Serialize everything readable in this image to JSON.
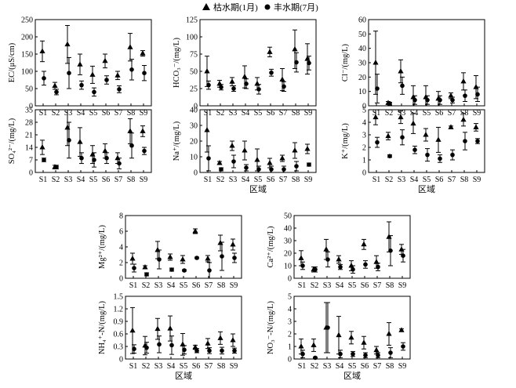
{
  "legend": {
    "placement": "top-center",
    "items": [
      {
        "label": "枯水期(1月)",
        "marker": "triangle"
      },
      {
        "label": "丰水期(7月)",
        "marker": "circle"
      }
    ]
  },
  "chart_data": [
    {
      "type": "scatter",
      "ylabel": "EC/(μS/cm)",
      "xlabel": "",
      "categories": [
        "S1",
        "S2",
        "S3",
        "S4",
        "S5",
        "S6",
        "S7",
        "S8",
        "S9"
      ],
      "ylim": [
        0,
        250
      ],
      "yticks": [
        0,
        50,
        100,
        150,
        200,
        250
      ],
      "series": [
        {
          "name": "枯水期(1月)",
          "marker": "triangle",
          "values": [
            158,
            58,
            178,
            120,
            90,
            130,
            88,
            170,
            152
          ],
          "errors": [
            30,
            10,
            55,
            30,
            25,
            20,
            12,
            40,
            8
          ]
        },
        {
          "name": "丰水期(7月)",
          "marker": "circle",
          "values": [
            80,
            40,
            95,
            60,
            40,
            75,
            48,
            105,
            95
          ],
          "errors": [
            20,
            8,
            45,
            12,
            12,
            12,
            10,
            30,
            22
          ]
        }
      ]
    },
    {
      "type": "scatter",
      "ylabel": "HCO₃⁻/(mg/L)",
      "xlabel": "",
      "categories": [
        "S1",
        "S2",
        "S3",
        "S4",
        "S5",
        "S6",
        "S7",
        "S8",
        "S9"
      ],
      "ylim": [
        0,
        125
      ],
      "yticks": [
        0,
        25,
        50,
        75,
        100,
        125
      ],
      "series": [
        {
          "name": "枯水期(1月)",
          "marker": "triangle",
          "values": [
            50,
            32,
            35,
            42,
            32,
            78,
            38,
            82,
            68
          ],
          "errors": [
            22,
            5,
            6,
            16,
            9,
            7,
            16,
            28,
            22
          ]
        },
        {
          "name": "丰水期(7月)",
          "marker": "circle",
          "values": [
            30,
            27,
            25,
            32,
            24,
            48,
            28,
            63,
            62
          ],
          "errors": [
            6,
            4,
            4,
            7,
            7,
            5,
            7,
            14,
            10
          ]
        }
      ]
    },
    {
      "type": "scatter",
      "ylabel": "Cl⁻/(mg/L)",
      "xlabel": "",
      "categories": [
        "S1",
        "S2",
        "S3",
        "S4",
        "S5",
        "S6",
        "S7",
        "S8",
        "S9"
      ],
      "ylim": [
        0,
        60
      ],
      "yticks": [
        0,
        10,
        20,
        30,
        40,
        50,
        60
      ],
      "series": [
        {
          "name": "枯水期(1月)",
          "marker": "triangle",
          "values": [
            30,
            2,
            24,
            6,
            6,
            5,
            7,
            17,
            13
          ],
          "errors": [
            22,
            1,
            8,
            8,
            8,
            5,
            2,
            6,
            8
          ]
        },
        {
          "name": "丰水期(7月)",
          "marker": "circle",
          "values": [
            12,
            1.5,
            14,
            4,
            4,
            4,
            4,
            7,
            8
          ],
          "errors": [
            10,
            1,
            6,
            3,
            3,
            3,
            2,
            4,
            5
          ]
        }
      ]
    },
    {
      "type": "scatter",
      "ylabel": "SO₄²⁻/(mg/L)",
      "xlabel": "",
      "categories": [
        "S1",
        "S2",
        "S3",
        "S4",
        "S5",
        "S6",
        "S7",
        "S8",
        "S9"
      ],
      "ylim": [
        0,
        35
      ],
      "yticks": [
        0,
        7,
        14,
        21,
        28,
        35
      ],
      "series": [
        {
          "name": "枯水期(1月)",
          "marker": "triangle",
          "values": [
            14,
            3,
            25,
            17,
            10,
            12,
            8,
            23,
            23
          ],
          "errors": [
            4,
            1,
            10,
            8,
            5,
            4,
            3,
            7,
            3
          ]
        },
        {
          "name": "丰水期(7月)",
          "marker": "circle",
          "values": [
            7,
            3,
            18,
            8,
            7,
            8,
            5,
            15,
            12
          ],
          "errors": [
            1,
            1,
            10,
            3,
            4,
            3,
            3,
            7,
            2
          ]
        }
      ]
    },
    {
      "type": "scatter",
      "ylabel": "Na⁺/(mg/L)",
      "xlabel": "区域",
      "categories": [
        "S1",
        "S2",
        "S3",
        "S4",
        "S5",
        "S6",
        "S7",
        "S8",
        "S9"
      ],
      "ylim": [
        0,
        40
      ],
      "yticks": [
        0,
        10,
        20,
        30,
        40
      ],
      "series": [
        {
          "name": "枯水期(1月)",
          "marker": "triangle",
          "values": [
            27,
            6,
            17,
            14,
            8,
            6,
            9,
            14,
            15
          ],
          "errors": [
            14,
            1,
            3,
            6,
            7,
            3,
            2,
            5,
            3
          ]
        },
        {
          "name": "丰水期(7月)",
          "marker": "circle",
          "values": [
            9,
            2,
            7,
            3,
            2,
            2,
            2,
            4,
            5
          ],
          "errors": [
            8,
            1,
            4,
            2,
            2,
            2,
            2,
            3,
            1
          ]
        }
      ]
    },
    {
      "type": "scatter",
      "ylabel": "K⁺/(mg/L)",
      "xlabel": "区域",
      "categories": [
        "S1",
        "S2",
        "S3",
        "S4",
        "S5",
        "S6",
        "S7",
        "S8",
        "S9"
      ],
      "ylim": [
        0,
        5
      ],
      "yticks": [
        0,
        1,
        2,
        3,
        4,
        5
      ],
      "series": [
        {
          "name": "枯水期(1月)",
          "marker": "triangle",
          "values": [
            4.4,
            2.9,
            4.4,
            3.9,
            3.0,
            2.6,
            3.6,
            4.2,
            3.6
          ],
          "errors": [
            0.6,
            0.3,
            0.5,
            0.8,
            0.5,
            1.0,
            0.1,
            0.5,
            0.3
          ]
        },
        {
          "name": "丰水期(7月)",
          "marker": "circle",
          "values": [
            2.4,
            1.3,
            2.8,
            1.8,
            1.4,
            1.1,
            1.4,
            2.5,
            2.5
          ],
          "errors": [
            0.4,
            0.1,
            0.6,
            0.3,
            0.5,
            0.3,
            0.4,
            0.7,
            0.2
          ]
        }
      ]
    },
    {
      "type": "scatter",
      "ylabel": "Mg²⁺/(mg/L)",
      "xlabel": "",
      "categories": [
        "S1",
        "S2",
        "S3",
        "S4",
        "S5",
        "S6",
        "S7",
        "S8",
        "S9"
      ],
      "ylim": [
        0,
        8
      ],
      "yticks": [
        0,
        2,
        4,
        6,
        8
      ],
      "series": [
        {
          "name": "枯水期(1月)",
          "marker": "triangle",
          "values": [
            2.5,
            1.4,
            3.6,
            2.7,
            2.4,
            6.0,
            2.5,
            4.5,
            4.3
          ],
          "errors": [
            0.7,
            0.2,
            1.1,
            0.4,
            0.5,
            0.3,
            0.4,
            1.0,
            0.7
          ]
        },
        {
          "name": "丰水期(7月)",
          "marker": "circle",
          "values": [
            1.3,
            0.5,
            2.4,
            1.1,
            1.0,
            2.6,
            1.0,
            2.8,
            2.6
          ],
          "errors": [
            0.5,
            0.2,
            1.2,
            0.2,
            0.1,
            0.1,
            1.0,
            1.8,
            0.6
          ]
        }
      ]
    },
    {
      "type": "scatter",
      "ylabel": "Ca²⁺/(mg/L)",
      "xlabel": "",
      "categories": [
        "S1",
        "S2",
        "S3",
        "S4",
        "S5",
        "S6",
        "S7",
        "S8",
        "S9"
      ],
      "ylim": [
        0,
        50
      ],
      "yticks": [
        0,
        10,
        20,
        30,
        40,
        50
      ],
      "series": [
        {
          "name": "枯水期(1月)",
          "marker": "triangle",
          "values": [
            16,
            7,
            23,
            15,
            10,
            27,
            13,
            33,
            23
          ],
          "errors": [
            6,
            2,
            8,
            3,
            4,
            4,
            5,
            12,
            4
          ]
        },
        {
          "name": "丰水期(7月)",
          "marker": "circle",
          "values": [
            10,
            7,
            15,
            9,
            7,
            11,
            9,
            22,
            18
          ],
          "errors": [
            3,
            2,
            6,
            2,
            3,
            3,
            3,
            12,
            5
          ]
        }
      ]
    },
    {
      "type": "scatter",
      "ylabel": "NH₄⁺-N/(mg/L)",
      "xlabel": "区域",
      "categories": [
        "S1",
        "S2",
        "S3",
        "S4",
        "S5",
        "S6",
        "S7",
        "S8",
        "S9"
      ],
      "ylim": [
        0,
        1.5
      ],
      "yticks": [
        0,
        0.3,
        0.6,
        0.9,
        1.2,
        1.5
      ],
      "series": [
        {
          "name": "枯水期(1月)",
          "marker": "triangle",
          "values": [
            0.68,
            0.32,
            0.72,
            0.73,
            0.35,
            0.28,
            0.37,
            0.5,
            0.45
          ],
          "errors": [
            0.55,
            0.22,
            0.25,
            0.3,
            0.26,
            0.05,
            0.12,
            0.15,
            0.15
          ]
        },
        {
          "name": "丰水期(7月)",
          "marker": "circle",
          "values": [
            0.24,
            0.27,
            0.35,
            0.33,
            0.22,
            0.2,
            0.2,
            0.2,
            0.2
          ],
          "errors": [
            0.1,
            0.13,
            0.2,
            0.22,
            0.1,
            0.05,
            0.07,
            0.08,
            0.06
          ]
        }
      ]
    },
    {
      "type": "scatter",
      "ylabel": "NO₃⁻-N/(mg/L)",
      "xlabel": "区域",
      "categories": [
        "S1",
        "S2",
        "S3",
        "S4",
        "S5",
        "S6",
        "S7",
        "S8",
        "S9"
      ],
      "ylim": [
        0,
        5
      ],
      "yticks": [
        0,
        1,
        2,
        3,
        4,
        5
      ],
      "series": [
        {
          "name": "枯水期(1月)",
          "marker": "triangle",
          "values": [
            1.0,
            1.1,
            2.5,
            1.9,
            1.7,
            1.3,
            0.7,
            2.0,
            2.3
          ],
          "errors": [
            0.6,
            0.5,
            2.0,
            1.5,
            0.5,
            0.5,
            0.3,
            0.9,
            0.1
          ]
        },
        {
          "name": "丰水期(7月)",
          "marker": "circle",
          "values": [
            0.4,
            0.1,
            2.5,
            0.4,
            0.4,
            0.3,
            0.3,
            0.5,
            1.0
          ],
          "errors": [
            0.3,
            0.05,
            2.0,
            0.3,
            0.2,
            0.2,
            0.2,
            0.4,
            0.3
          ]
        }
      ]
    }
  ]
}
